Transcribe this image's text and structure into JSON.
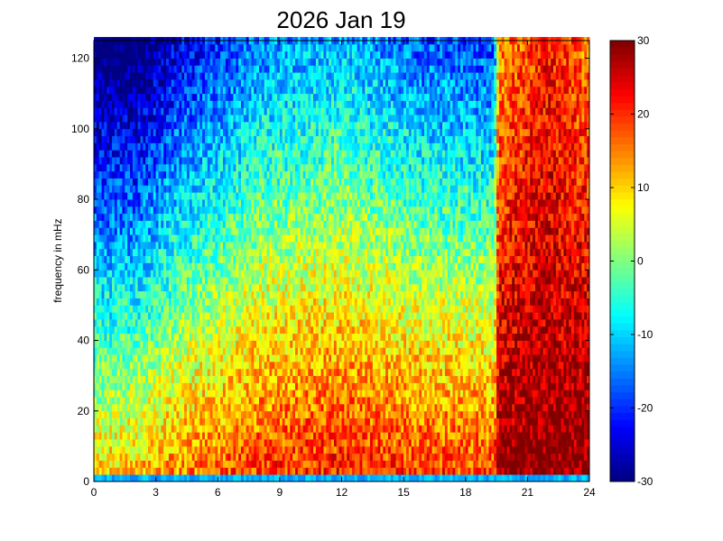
{
  "chart_data": {
    "type": "heatmap",
    "title": "2026 Jan 19",
    "xlabel": "",
    "ylabel": "frequency in mHz",
    "xlim": [
      0,
      24
    ],
    "ylim": [
      0,
      125
    ],
    "x_ticks": [
      "0",
      "3",
      "6",
      "9",
      "12",
      "15",
      "18",
      "21",
      "24"
    ],
    "y_ticks": [
      "0",
      "20",
      "40",
      "60",
      "80",
      "100",
      "120"
    ],
    "colorbar": {
      "colormap": "jet",
      "range": [
        -30,
        30
      ],
      "ticks": [
        "-30",
        "-20",
        "-10",
        "0",
        "10",
        "20",
        "30"
      ]
    },
    "time_step_hours": 0.125,
    "freq_step_mhz": 2,
    "approx_levels": {
      "columns_hours": [
        0,
        2,
        4,
        8,
        12,
        16,
        19.4,
        19.6,
        21.9,
        24
      ],
      "floor_db_at_0mhz": [
        10,
        12,
        15,
        20,
        22,
        20,
        19,
        30,
        30,
        30
      ],
      "decay_db_per_mhz": [
        0.34,
        0.37,
        0.32,
        0.28,
        0.27,
        0.3,
        0.3,
        0.13,
        0.07,
        0.12
      ]
    },
    "features": [
      "narrow low-level band near 1 mHz",
      "broadband enhancement after 19.5 h",
      "vertical streak near 22 h"
    ]
  }
}
